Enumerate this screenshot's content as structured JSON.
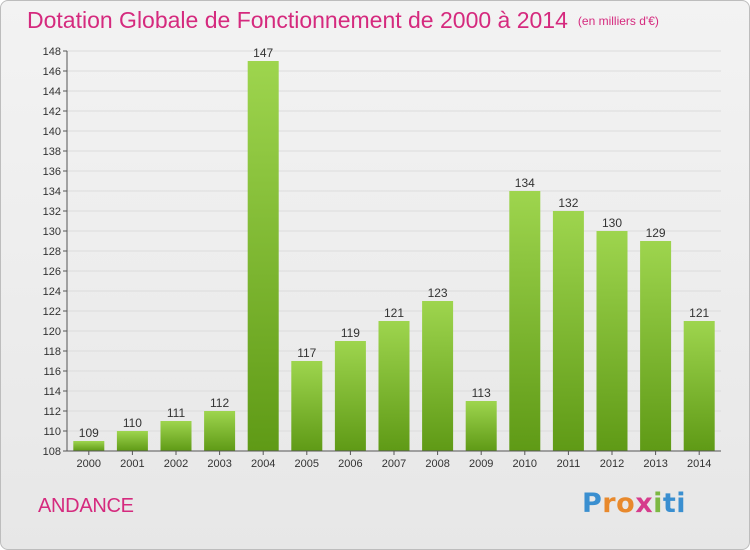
{
  "header": {
    "title": "Dotation Globale de Fonctionnement de 2000 à 2014",
    "subtitle": "(en milliers d'€)"
  },
  "footer": {
    "commune": "ANDANCE",
    "logo_letters": [
      "P",
      "r",
      "o",
      "x",
      "i",
      "ti"
    ]
  },
  "colors": {
    "bar_light": "#9ed54e",
    "bar_dark": "#5f9a16",
    "title": "#d52a7e",
    "grid": "#dcdcdc"
  },
  "chart_data": {
    "type": "bar",
    "title": "Dotation Globale de Fonctionnement de 2000 à 2014",
    "subtitle": "(en milliers d'€)",
    "categories": [
      "2000",
      "2001",
      "2002",
      "2003",
      "2004",
      "2005",
      "2006",
      "2007",
      "2008",
      "2009",
      "2010",
      "2011",
      "2012",
      "2013",
      "2014"
    ],
    "values": [
      109,
      110,
      111,
      112,
      147,
      117,
      119,
      121,
      123,
      113,
      134,
      132,
      130,
      129,
      121
    ],
    "ylim": [
      108,
      148
    ],
    "yticks": [
      108,
      110,
      112,
      114,
      116,
      118,
      120,
      122,
      124,
      126,
      128,
      130,
      132,
      134,
      136,
      138,
      140,
      142,
      144,
      146,
      148
    ],
    "grid": true,
    "legend": "none"
  }
}
